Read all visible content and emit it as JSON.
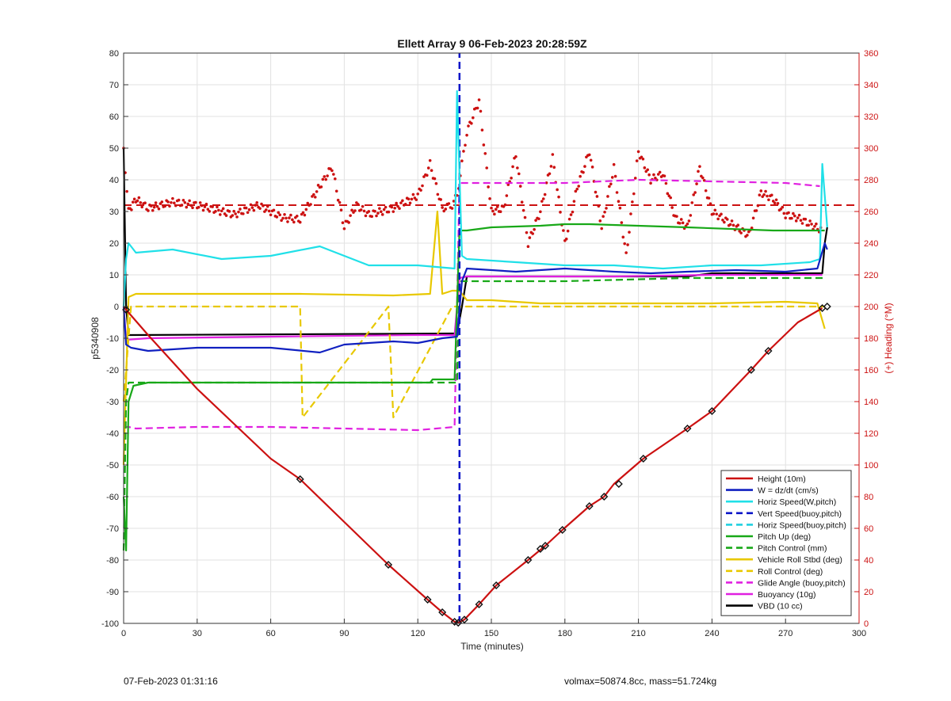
{
  "chart_data": {
    "type": "line",
    "title": "Ellett Array 9 06-Feb-2023 20:28:59Z",
    "xlabel": "Time (minutes)",
    "ylabel": "p5340908",
    "y2label": "(+) Heading (°M)",
    "xlim": [
      0,
      300
    ],
    "ylim": [
      -100,
      80
    ],
    "y2lim": [
      0,
      360
    ],
    "xticks": [
      "0",
      "30",
      "60",
      "90",
      "120",
      "150",
      "180",
      "210",
      "240",
      "270",
      "300"
    ],
    "yticks": [
      "-100",
      "-90",
      "-80",
      "-70",
      "-60",
      "-50",
      "-40",
      "-30",
      "-20",
      "-10",
      "0",
      "10",
      "20",
      "30",
      "40",
      "50",
      "60",
      "70",
      "80"
    ],
    "y2ticks": [
      "0",
      "20",
      "40",
      "60",
      "80",
      "100",
      "120",
      "140",
      "160",
      "180",
      "200",
      "220",
      "240",
      "260",
      "280",
      "300",
      "320",
      "340",
      "360"
    ],
    "grid": true,
    "legend_position": "bottom-right",
    "series": [
      {
        "name": "Height (10m)",
        "color": "#cc1111",
        "style": "solid",
        "markers": "diamond",
        "x": [
          0,
          1,
          10,
          30,
          60,
          72,
          90,
          108,
          124,
          130,
          135,
          136.5,
          139,
          145,
          152,
          165,
          172,
          179,
          190,
          196,
          200,
          212,
          230,
          240,
          256,
          263,
          275,
          285
        ],
        "y": [
          0,
          -1,
          -9,
          -26,
          -48,
          -54.5,
          -68,
          -81.5,
          -92.5,
          -96.5,
          -99.5,
          -99.8,
          -98.8,
          -94,
          -88,
          -80,
          -75.5,
          -70.5,
          -63,
          -60,
          -56,
          -48,
          -38.5,
          -33,
          -20,
          -14,
          -5,
          -0.5
        ],
        "marker_x": [
          1,
          72,
          108,
          124,
          130,
          135,
          136.5,
          139,
          145,
          152,
          165,
          170,
          172,
          179,
          190,
          196,
          202,
          212,
          230,
          240,
          256,
          263,
          285,
          287
        ],
        "marker_y": [
          -1,
          -54.5,
          -81.5,
          -92.5,
          -96.5,
          -99.5,
          -99.8,
          -98.8,
          -94,
          -88,
          -80,
          -76.5,
          -75.5,
          -70.5,
          -63,
          -60,
          -56,
          -48,
          -38.5,
          -33,
          -20,
          -14,
          -0.5,
          0
        ]
      },
      {
        "name": "W = dz/dt (cm/s)",
        "color": "#1020c0",
        "style": "solid",
        "x": [
          0,
          1,
          3,
          10,
          30,
          60,
          80,
          90,
          110,
          120,
          130,
          136,
          138,
          140,
          160,
          180,
          200,
          215,
          230,
          250,
          270,
          283,
          286,
          287
        ],
        "y": [
          0,
          -12,
          -13,
          -14,
          -13,
          -13,
          -14.5,
          -12,
          -11,
          -11.5,
          -10,
          -9.5,
          8,
          12,
          11,
          12,
          11,
          10.5,
          11,
          11.5,
          11,
          12,
          20,
          18
        ]
      },
      {
        "name": "Horiz Speed(W,pitch)",
        "color": "#20e0e8",
        "style": "solid",
        "x": [
          0,
          1,
          2,
          5,
          20,
          40,
          60,
          80,
          100,
          120,
          135,
          136,
          136.5,
          138,
          140,
          160,
          180,
          200,
          220,
          240,
          260,
          280,
          284,
          285,
          287
        ],
        "y": [
          0,
          15,
          20,
          17,
          18,
          15,
          16,
          19,
          13,
          13,
          12,
          68,
          55,
          16,
          15,
          14,
          13,
          13,
          12,
          13,
          13,
          14,
          15,
          45,
          25
        ]
      },
      {
        "name": "Vert Speed(buoy,pitch)",
        "color": "#0a14c8",
        "style": "dashed",
        "x": [
          137,
          137
        ],
        "y": [
          -100,
          80
        ]
      },
      {
        "name": "Horiz Speed(buoy,pitch)",
        "color": "#20d0e0",
        "style": "dashed",
        "x": [],
        "y": []
      },
      {
        "name": "Pitch Up (deg)",
        "color": "#18a818",
        "style": "solid",
        "x": [
          0,
          1,
          2,
          4,
          10,
          60,
          100,
          125,
          126,
          135,
          137,
          140,
          150,
          170,
          180,
          190,
          230,
          265,
          280,
          286
        ],
        "y": [
          -60,
          -77,
          -30,
          -25,
          -24,
          -24,
          -24,
          -24,
          -23,
          -23,
          24,
          24,
          25,
          25.5,
          26,
          26,
          25,
          24,
          24,
          24
        ]
      },
      {
        "name": "Pitch Control (mm)",
        "color": "#18a818",
        "style": "dashed",
        "x": [
          0,
          1,
          2,
          4,
          136,
          137,
          140,
          180,
          230,
          286
        ],
        "y": [
          -77,
          -30,
          -24,
          -24,
          -24,
          8,
          8,
          8,
          9,
          9
        ]
      },
      {
        "name": "Vehicle Roll Stbd (deg)",
        "color": "#e8c800",
        "style": "solid",
        "x": [
          0,
          2,
          5,
          30,
          72,
          110,
          125,
          128,
          130,
          134,
          137,
          140,
          150,
          170,
          190,
          210,
          240,
          270,
          283,
          286
        ],
        "y": [
          -50,
          3,
          4,
          4,
          4,
          3.5,
          4,
          30,
          4,
          5,
          5,
          2,
          2,
          1,
          1,
          1,
          1,
          1.5,
          1,
          -7
        ]
      },
      {
        "name": "Roll Control (deg)",
        "color": "#e8c800",
        "style": "dashed",
        "x": [
          0,
          3,
          72,
          73,
          108,
          110,
          134,
          137,
          286
        ],
        "y": [
          -30,
          0,
          0,
          -35,
          0,
          -35,
          0,
          0,
          0
        ]
      },
      {
        "name": "Glide Angle (buoy,pitch)",
        "color": "#e020e0",
        "style": "dashed",
        "x": [
          0,
          2,
          5,
          30,
          60,
          90,
          120,
          135,
          137,
          140,
          180,
          210,
          240,
          270,
          284
        ],
        "y": [
          -38,
          -38,
          -38.5,
          -38,
          -38,
          -38.5,
          -39,
          -38,
          39,
          39,
          39,
          40,
          39.5,
          39,
          38
        ]
      },
      {
        "name": "Buoyancy (10g)",
        "color": "#e020e0",
        "style": "solid",
        "x": [
          0,
          1,
          10,
          60,
          120,
          135,
          137,
          140,
          200,
          240,
          285
        ],
        "y": [
          0,
          -10.5,
          -10,
          -9.5,
          -9,
          -9,
          9,
          9.5,
          9.5,
          10,
          10
        ]
      },
      {
        "name": "VBD (10 cc)",
        "color": "#000000",
        "style": "solid",
        "x": [
          0,
          1,
          2,
          135,
          136,
          138,
          140,
          230,
          240,
          285,
          286,
          287
        ],
        "y": [
          50,
          0,
          -9,
          -8.5,
          -8.5,
          0,
          9.5,
          9.5,
          10.5,
          10.5,
          20,
          25
        ]
      }
    ],
    "heading_series": {
      "name": "Heading",
      "color": "#cc1111",
      "style": "dotted",
      "axis": "right",
      "x": [
        0,
        2,
        5,
        10,
        20,
        30,
        45,
        55,
        65,
        72,
        80,
        85,
        90,
        95,
        100,
        110,
        120,
        125,
        130,
        134,
        136,
        140,
        145,
        150,
        155,
        160,
        165,
        170,
        175,
        180,
        185,
        190,
        195,
        200,
        205,
        210,
        215,
        220,
        225,
        230,
        235,
        240,
        250,
        255,
        260,
        265,
        270,
        275,
        280,
        285
      ],
      "y": [
        300,
        260,
        268,
        262,
        266,
        264,
        258,
        264,
        256,
        255,
        276,
        288,
        250,
        264,
        258,
        262,
        270,
        290,
        262,
        264,
        270,
        310,
        330,
        260,
        262,
        296,
        240,
        260,
        294,
        240,
        275,
        298,
        250,
        288,
        232,
        298,
        280,
        284,
        256,
        250,
        288,
        260,
        250,
        245,
        272,
        268,
        258,
        256,
        252,
        248
      ],
      "reference_heading": 264
    },
    "annotations": [
      "07-Feb-2023 01:31:16",
      "volmax=50874.8cc, mass=51.724kg"
    ]
  }
}
